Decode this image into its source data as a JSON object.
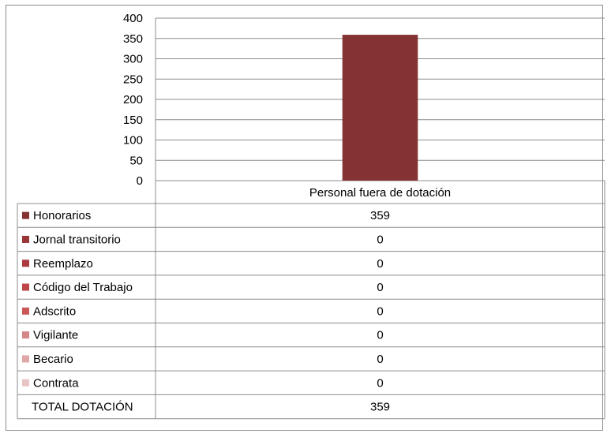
{
  "chart_data": {
    "type": "bar",
    "categories": [
      "Personal fuera de dotación"
    ],
    "series": [
      {
        "name": "Honorarios",
        "values": [
          359
        ],
        "color": "#853233"
      },
      {
        "name": "Jornal transitorio",
        "values": [
          0
        ],
        "color": "#983638"
      },
      {
        "name": "Reemplazo",
        "values": [
          0
        ],
        "color": "#ab3b3e"
      },
      {
        "name": "Código del Trabajo",
        "values": [
          0
        ],
        "color": "#be4548"
      },
      {
        "name": "Adscrito",
        "values": [
          0
        ],
        "color": "#c95857"
      },
      {
        "name": "Vigilante",
        "values": [
          0
        ],
        "color": "#d48688"
      },
      {
        "name": "Becario",
        "values": [
          0
        ],
        "color": "#dfa7a7"
      },
      {
        "name": "Contrata",
        "values": [
          0
        ],
        "color": "#e9c4c4"
      }
    ],
    "total_row": {
      "label": "TOTAL DOTACIÓN",
      "values": [
        "359"
      ]
    },
    "ylim": [
      0,
      400
    ],
    "yticks": [
      "0",
      "50",
      "100",
      "150",
      "200",
      "250",
      "300",
      "350",
      "400"
    ],
    "grid": true,
    "legend": "data-table-left"
  }
}
